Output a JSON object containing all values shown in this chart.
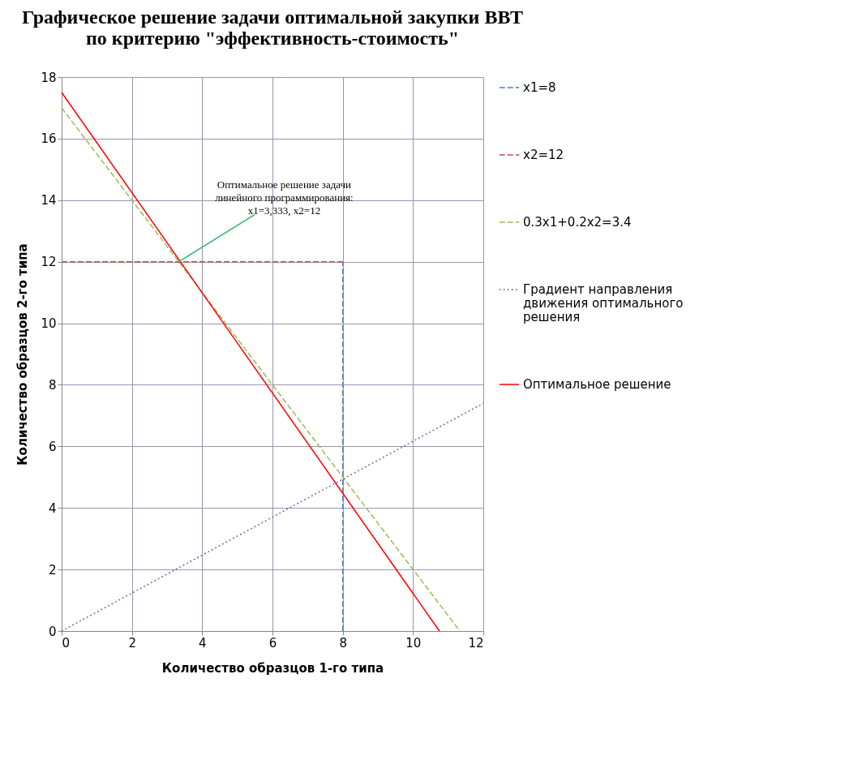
{
  "chart_data": {
    "type": "line",
    "title": "Графическое решение задачи оптимальной закупки ВВТ по критерию \"эффективность-стоимость\"",
    "xlabel": "Количество  образцов  1-го типа",
    "ylabel": "Количество  образцов  2-го типа",
    "xlim": [
      0,
      12
    ],
    "xticks": [
      0,
      2,
      4,
      6,
      8,
      10,
      12
    ],
    "ylim": [
      0,
      18
    ],
    "yticks": [
      0,
      2,
      4,
      6,
      8,
      10,
      12,
      14,
      16,
      18
    ],
    "grid": true,
    "legend": "right",
    "marker": "none",
    "annotations": [
      {
        "text": "Оптимальное решение задачи линейного программирования: x1=3,333, x2=12",
        "x": 3.333,
        "y": 12
      }
    ],
    "series": [
      {
        "name": "x1=8",
        "color": "#4f81bd",
        "line_style": "dashed",
        "x": [
          8,
          8
        ],
        "values": [
          0,
          12
        ]
      },
      {
        "name": "x2=12",
        "color": "#c0504d",
        "line_style": "dashed",
        "x": [
          0,
          8
        ],
        "values": [
          12,
          12
        ]
      },
      {
        "name": "0.3x1+0.2x2=3.4",
        "color": "#9bbb59",
        "line_style": "dashed",
        "x": [
          0,
          11.333
        ],
        "values": [
          17,
          0
        ]
      },
      {
        "name": "Градиент направления движения оптимального решения",
        "color": "#8064a2",
        "line_style": "dotted",
        "x": [
          0,
          12
        ],
        "values": [
          0,
          7.4
        ]
      },
      {
        "name": "Оптимальное решение",
        "color": "#ff0000",
        "line_style": "solid",
        "x": [
          0,
          10.75
        ],
        "values": [
          17.5,
          0
        ]
      }
    ]
  }
}
